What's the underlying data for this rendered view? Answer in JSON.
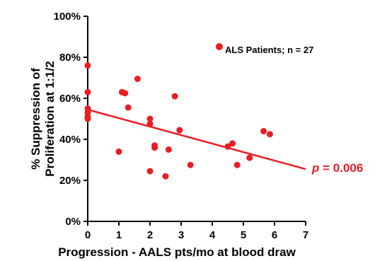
{
  "chart_data": {
    "type": "scatter",
    "title": "",
    "xlabel": "Progression - AALS pts/mo at blood draw",
    "ylabel_lines": [
      "% Suppression of",
      "Proliferation at 1:1/2"
    ],
    "xlim": [
      0,
      7
    ],
    "ylim": [
      0,
      100
    ],
    "x_ticks": [
      "0",
      "1",
      "2",
      "3",
      "4",
      "5",
      "6",
      "7"
    ],
    "y_ticks": [
      "0%",
      "20%",
      "40%",
      "60%",
      "80%",
      "100%"
    ],
    "grid": false,
    "legend_position": "top-right",
    "series": [
      {
        "name": "ALS Patients; n = 27",
        "color": "#e81e25",
        "points": [
          {
            "x": 0,
            "y": 76
          },
          {
            "x": 0,
            "y": 63
          },
          {
            "x": 0,
            "y": 55
          },
          {
            "x": 0,
            "y": 53
          },
          {
            "x": 0,
            "y": 51
          },
          {
            "x": 0,
            "y": 50
          },
          {
            "x": 1.0,
            "y": 34
          },
          {
            "x": 1.1,
            "y": 63
          },
          {
            "x": 1.2,
            "y": 62.5
          },
          {
            "x": 1.3,
            "y": 55.5
          },
          {
            "x": 1.6,
            "y": 69.5
          },
          {
            "x": 2.0,
            "y": 50
          },
          {
            "x": 2.0,
            "y": 47.5
          },
          {
            "x": 2.0,
            "y": 24.5
          },
          {
            "x": 2.15,
            "y": 37
          },
          {
            "x": 2.15,
            "y": 36
          },
          {
            "x": 2.5,
            "y": 22
          },
          {
            "x": 2.6,
            "y": 35
          },
          {
            "x": 2.8,
            "y": 61
          },
          {
            "x": 2.95,
            "y": 44.5
          },
          {
            "x": 3.3,
            "y": 27.5
          },
          {
            "x": 4.5,
            "y": 36.5
          },
          {
            "x": 4.65,
            "y": 38
          },
          {
            "x": 4.8,
            "y": 27.5
          },
          {
            "x": 5.2,
            "y": 31
          },
          {
            "x": 5.65,
            "y": 44
          },
          {
            "x": 5.85,
            "y": 42.5
          }
        ]
      }
    ],
    "trendline": {
      "x0": 0,
      "y0": 54.5,
      "x1": 7,
      "y1": 25.5,
      "color": "#e81e25"
    },
    "annotation": {
      "p_label": "p",
      "p_value": " = 0.006"
    }
  }
}
